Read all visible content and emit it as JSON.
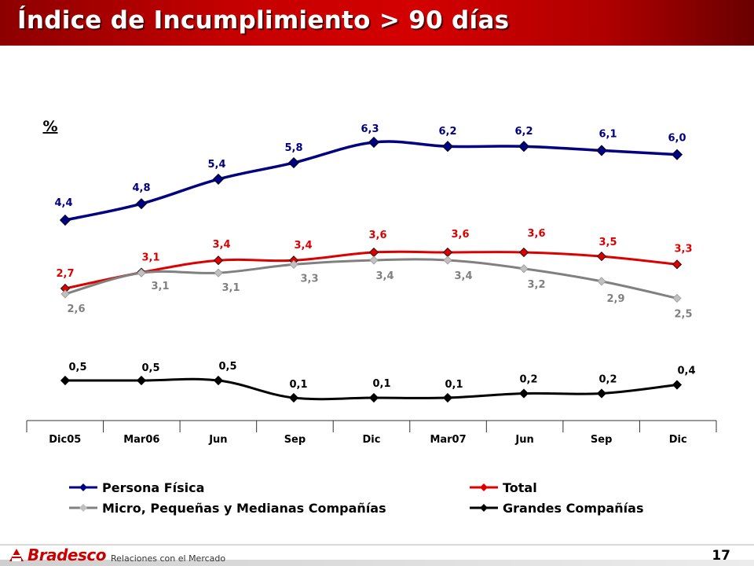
{
  "title": "Índice de Incumplimiento > 90 días",
  "footer": {
    "brand": "Bradesco",
    "subtitle": "Relaciones con el Mercado",
    "page": "17"
  },
  "colors": {
    "persona": "#000080",
    "total": "#dd0000",
    "micro": "#808080",
    "micro_marker": "#c0c0c0",
    "grandes": "#000000",
    "title_red": "#c40000"
  },
  "chart_data": {
    "type": "line",
    "title": "Índice de Incumplimiento > 90 días",
    "ylabel": "%",
    "xlabel": "",
    "categories": [
      "Dic05",
      "Mar06",
      "Jun",
      "Sep",
      "Dic",
      "Mar07",
      "Jun",
      "Sep",
      "Dic"
    ],
    "grid": false,
    "legend_position": "bottom",
    "series": [
      {
        "name": "Persona Física",
        "values": [
          4.4,
          4.8,
          5.4,
          5.8,
          6.3,
          6.2,
          6.2,
          6.1,
          6.0
        ],
        "labels": [
          "4,4",
          "4,8",
          "5,4",
          "5,8",
          "6,3",
          "6,2",
          "6,2",
          "6,1",
          "6,0"
        ]
      },
      {
        "name": "Total",
        "values": [
          2.7,
          3.1,
          3.4,
          3.4,
          3.6,
          3.6,
          3.6,
          3.5,
          3.3
        ],
        "labels": [
          "2,7",
          "3,1",
          "3,4",
          "3,4",
          "3,6",
          "3,6",
          "3,6",
          "3,5",
          "3,3"
        ]
      },
      {
        "name": "Micro, Pequeñas y Medianas Compañías",
        "values": [
          2.6,
          3.1,
          3.1,
          3.3,
          3.4,
          3.4,
          3.2,
          2.9,
          2.5
        ],
        "labels": [
          "2,6",
          "3,1",
          "3,1",
          "3,3",
          "3,4",
          "3,4",
          "3,2",
          "2,9",
          "2,5"
        ]
      },
      {
        "name": "Grandes Compañías",
        "values": [
          0.5,
          0.5,
          0.5,
          0.1,
          0.1,
          0.1,
          0.2,
          0.2,
          0.4
        ],
        "labels": [
          "0,5",
          "0,5",
          "0,5",
          "0,1",
          "0,1",
          "0,1",
          "0,2",
          "0,2",
          "0,4"
        ]
      }
    ]
  }
}
